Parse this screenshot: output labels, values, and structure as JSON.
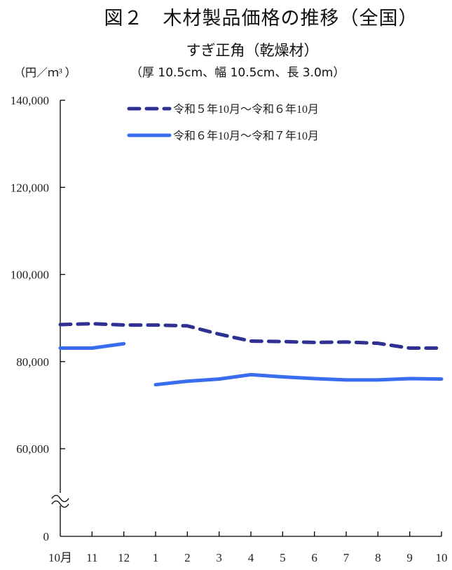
{
  "header": {
    "title": "図２　木材製品価格の推移（全国）",
    "subtitle": "すぎ正角（乾燥材）",
    "spec": "（厚 10.5cm、幅 10.5cm、長 3.0m）",
    "unit": "（円／ｍ³ ）"
  },
  "legend": {
    "series_prev": "令和５年10月～令和６年10月",
    "series_curr": "令和６年10月～令和７年10月"
  },
  "colors": {
    "series_prev": "#2e3192",
    "series_curr": "#3a6cf0",
    "axis": "#000000"
  },
  "chart_data": {
    "type": "line",
    "title": "図２　木材製品価格の推移（全国）",
    "subtitle": "すぎ正角（乾燥材）（厚 10.5cm、幅 10.5cm、長 3.0m）",
    "xlabel": "",
    "ylabel": "円／ｍ³",
    "categories": [
      "10月",
      "11",
      "12",
      "1",
      "2",
      "3",
      "4",
      "5",
      "6",
      "7",
      "8",
      "9",
      "10"
    ],
    "yticks": [
      "0",
      "60,000",
      "80,000",
      "100,000",
      "120,000",
      "140,000"
    ],
    "ylim": [
      0,
      140000
    ],
    "axis_break": "between 0 and 60,000",
    "grid": false,
    "legend_position": "top-center",
    "series": [
      {
        "name": "令和５年10月～令和６年10月",
        "style": "dashed",
        "color": "#2e3192",
        "values": [
          88500,
          88700,
          88400,
          88400,
          88200,
          86300,
          84700,
          84600,
          84400,
          84500,
          84200,
          83100,
          83100
        ]
      },
      {
        "name": "令和６年10月～令和７年10月",
        "style": "solid",
        "color": "#3a6cf0",
        "segments_note": "line broken between 12 and 1",
        "values": [
          83100,
          83100,
          84100,
          74700,
          75500,
          76000,
          77000,
          76500,
          76100,
          75800,
          75800,
          76100,
          76000
        ]
      }
    ]
  }
}
